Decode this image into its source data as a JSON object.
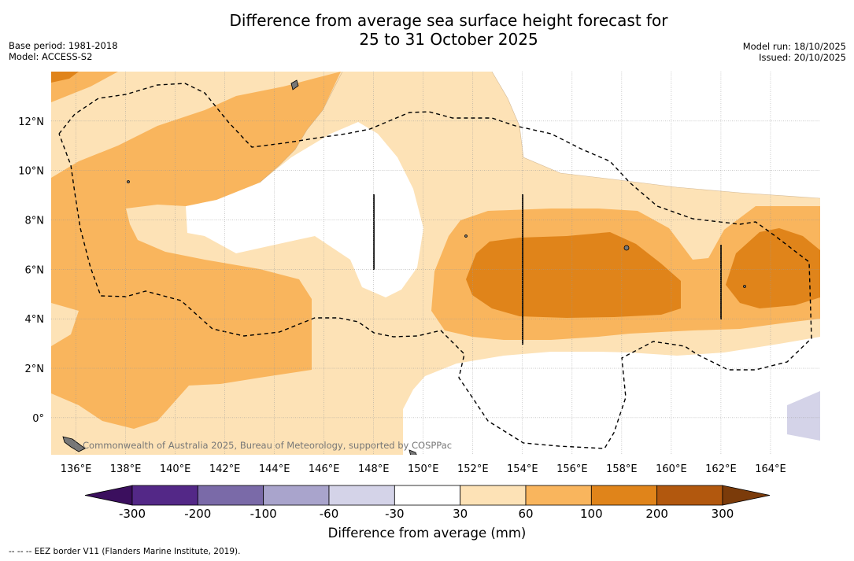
{
  "header": {
    "title_line1": "Difference from average sea surface height forecast for",
    "title_line2": "25 to 31 October 2025",
    "base_period": "Base period: 1981-2018",
    "model": "Model: ACCESS-S2",
    "model_run": "Model run: 18/10/2025",
    "issued": "Issued: 20/10/2025"
  },
  "map": {
    "lon_range": [
      135,
      166
    ],
    "lat_range": [
      -1.5,
      14
    ],
    "lon_ticks": [
      "136°E",
      "138°E",
      "140°E",
      "142°E",
      "144°E",
      "146°E",
      "148°E",
      "150°E",
      "152°E",
      "154°E",
      "156°E",
      "158°E",
      "160°E",
      "162°E",
      "164°E"
    ],
    "lat_ticks": [
      "0°",
      "2°N",
      "4°N",
      "6°N",
      "8°N",
      "10°N",
      "12°N"
    ],
    "credit": "Commonwealth of Australia 2025, Bureau of Meteorology, supported by COSPPac"
  },
  "colorbar": {
    "label": "Difference from average (mm)",
    "ticks": [
      "-300",
      "-200",
      "-100",
      "-60",
      "-30",
      "30",
      "60",
      "100",
      "200",
      "300"
    ],
    "colors": [
      "#3b0f5e",
      "#532887",
      "#7a6aa8",
      "#a9a4cc",
      "#d4d3e8",
      "#ffffff",
      "#fde2b6",
      "#f9b55d",
      "#e0841a",
      "#b2580e",
      "#7b3b0a"
    ]
  },
  "footnote": "-- -- -- EEZ border V11 (Flanders Marine Institute, 2019)."
}
